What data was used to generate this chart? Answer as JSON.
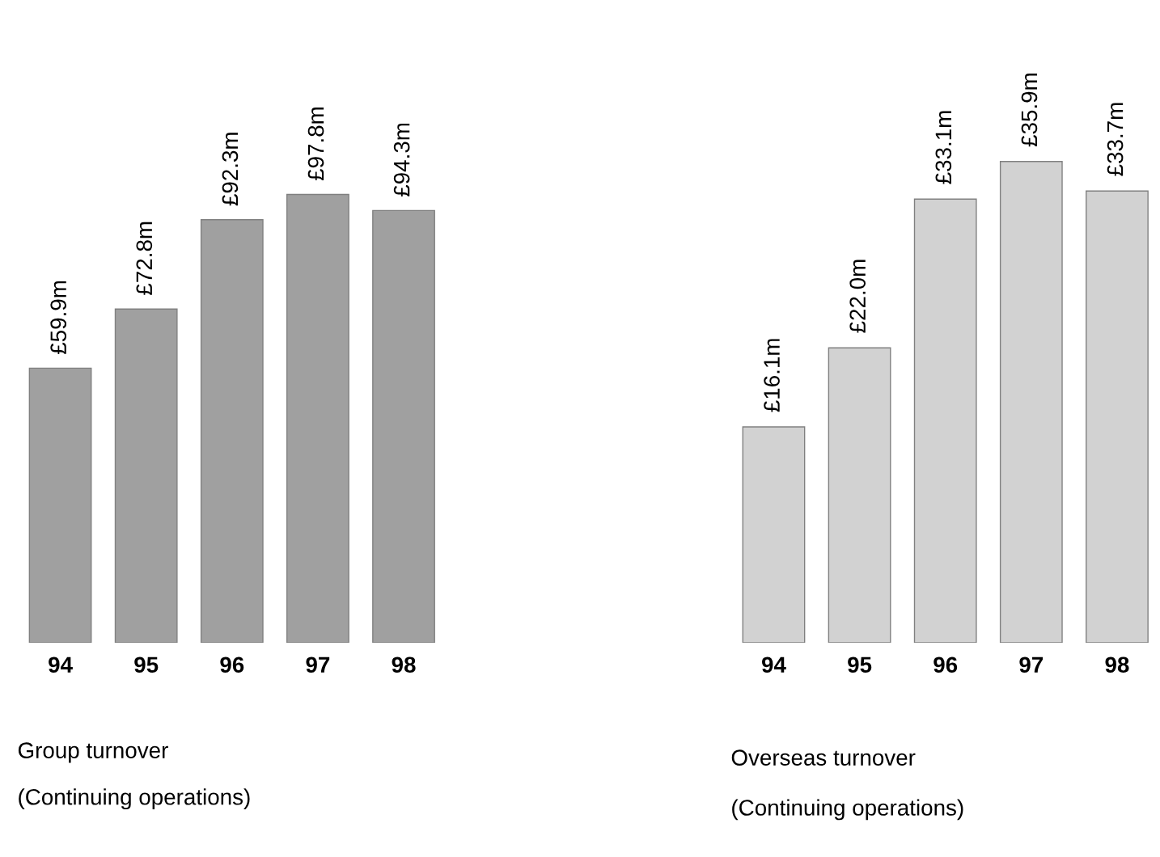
{
  "chart_data": [
    {
      "type": "bar",
      "title": "Group turnover",
      "subtitle": "(Continuing operations)",
      "categories": [
        "94",
        "95",
        "96",
        "97",
        "98"
      ],
      "values": [
        59.9,
        72.8,
        92.3,
        97.8,
        94.3
      ],
      "color": "#a0a0a0",
      "value_labels": [
        "£59.9m",
        "£72.8m",
        "£92.3m",
        "£97.8m",
        "£94.3m"
      ],
      "tick_labels": "x",
      "grid": false,
      "legend": false
    },
    {
      "type": "bar",
      "title": "Overseas turnover",
      "subtitle": "(Continuing operations)",
      "categories": [
        "94",
        "95",
        "96",
        "97",
        "98"
      ],
      "values": [
        16.1,
        22.0,
        33.1,
        35.9,
        33.7
      ],
      "color": "#d2d2d2",
      "value_labels": [
        "£16.1m",
        "£22.0m",
        "£33.1m",
        "£35.9m",
        "£33.7m"
      ],
      "tick_labels": "x",
      "grid": false,
      "legend": false
    }
  ]
}
